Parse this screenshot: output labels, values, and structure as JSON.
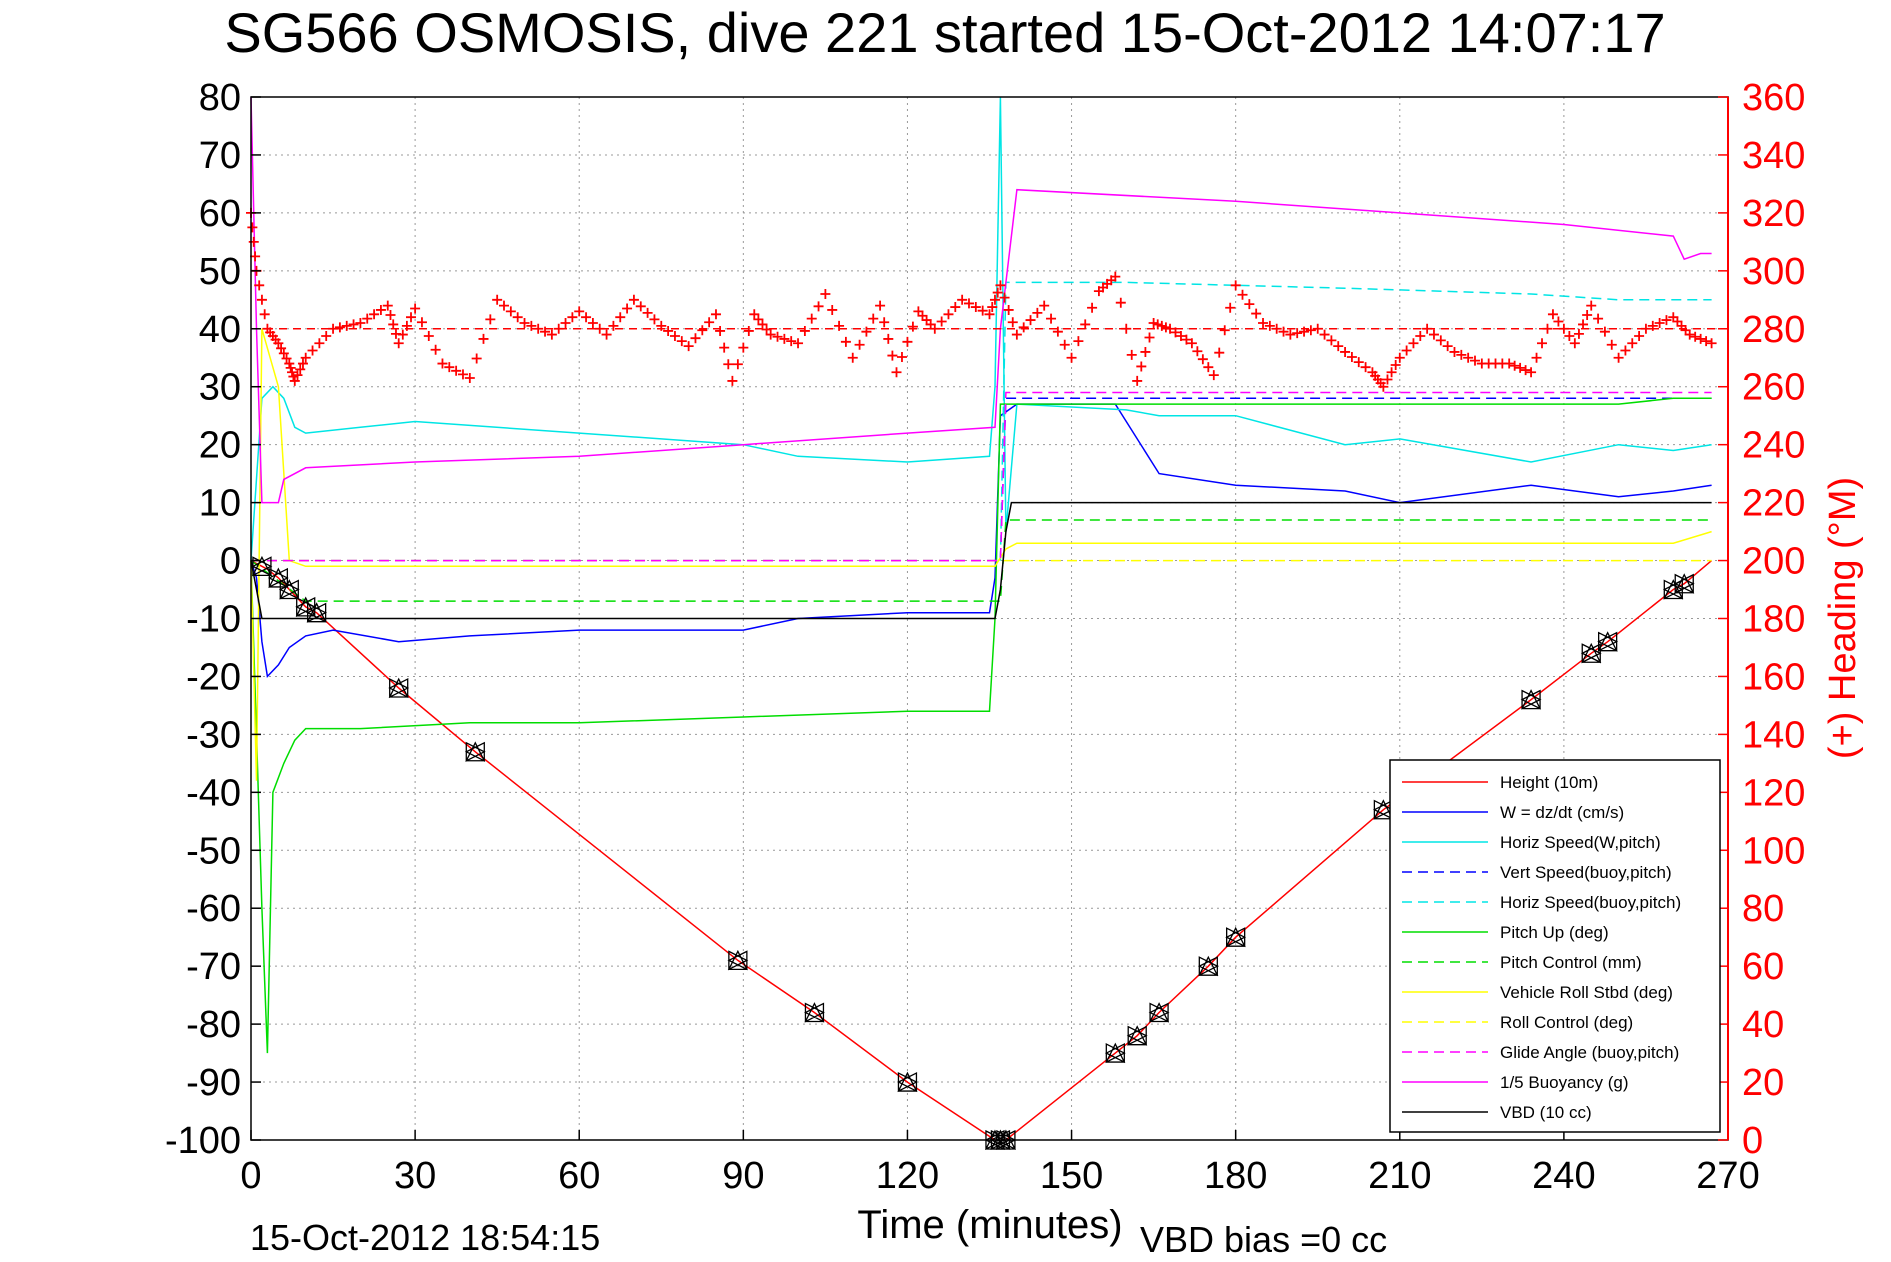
{
  "chart_data": {
    "type": "line",
    "title": "SG566 OSMOSIS, dive 221 started 15-Oct-2012 14:07:17",
    "xlabel": "Time (minutes)",
    "ylabel_right": "(+) Heading (°M)",
    "footer_date": "15-Oct-2012 18:54:15",
    "footer_bias": "VBD bias =0 cc",
    "xlim": [
      0,
      270
    ],
    "ylim": [
      -100,
      80
    ],
    "ylim_right": [
      0,
      360
    ],
    "xticks": [
      0,
      30,
      60,
      90,
      120,
      150,
      180,
      210,
      240,
      270
    ],
    "yticks": [
      -100,
      -90,
      -80,
      -70,
      -60,
      -50,
      -40,
      -30,
      -20,
      -10,
      0,
      10,
      20,
      30,
      40,
      50,
      60,
      70,
      80
    ],
    "yticks_right": [
      0,
      20,
      40,
      60,
      80,
      100,
      120,
      140,
      160,
      180,
      200,
      220,
      240,
      260,
      280,
      300,
      320,
      340,
      360
    ],
    "grid": true,
    "legend_position": "bottom-right",
    "colors": {
      "height": "#ff0000",
      "w": "#0000ff",
      "horiz_speed_w": "#00e5e5",
      "vert_speed_buoy": "#0000ff",
      "horiz_speed_buoy": "#00e5e5",
      "pitch_up": "#00dd00",
      "pitch_control": "#00dd00",
      "roll": "#ffff00",
      "roll_control": "#ffff00",
      "glide_angle": "#ff00ff",
      "buoyancy": "#ff00ff",
      "vbd": "#000000",
      "heading": "#ff0000"
    },
    "series": [
      {
        "name": "Height (10m)",
        "style": "solid",
        "color": "#ff0000",
        "x": [
          0,
          1,
          2,
          3,
          5,
          7,
          10,
          12,
          27,
          41,
          89,
          103,
          120,
          136,
          137,
          138,
          158,
          162,
          166,
          175,
          180,
          207,
          234,
          245,
          248,
          260,
          262,
          267
        ],
        "y": [
          0,
          -0.5,
          -1,
          -1.5,
          -3,
          -5,
          -8,
          -9,
          -22,
          -33,
          -69,
          -78,
          -90,
          -100,
          -100,
          -100,
          -85,
          -82,
          -78,
          -70,
          -65,
          -43,
          -24,
          -16,
          -14,
          -5,
          -4,
          0
        ]
      },
      {
        "name": "W = dz/dt (cm/s)",
        "style": "solid",
        "color": "#0000ff",
        "x": [
          0,
          1,
          2,
          3,
          5,
          7,
          10,
          15,
          27,
          40,
          60,
          90,
          100,
          120,
          135,
          136,
          137,
          140,
          155,
          158,
          166,
          180,
          200,
          210,
          234,
          250,
          260,
          267
        ],
        "y": [
          0,
          -3,
          -14,
          -20,
          -18,
          -15,
          -13,
          -12,
          -14,
          -13,
          -12,
          -12,
          -10,
          -9,
          -9,
          -3,
          25,
          27,
          27,
          27,
          15,
          13,
          12,
          10,
          13,
          11,
          12,
          13
        ]
      },
      {
        "name": "Horiz Speed(W,pitch)",
        "style": "solid",
        "color": "#00e5e5",
        "x": [
          0,
          2,
          4,
          6,
          8,
          10,
          20,
          30,
          60,
          90,
          100,
          120,
          135,
          136,
          137,
          138,
          140,
          160,
          166,
          180,
          200,
          210,
          234,
          250,
          260,
          267
        ],
        "y": [
          0,
          28,
          30,
          28,
          23,
          22,
          23,
          24,
          22,
          20,
          18,
          17,
          18,
          30,
          80,
          5,
          27,
          26,
          25,
          25,
          20,
          21,
          17,
          20,
          19,
          20
        ]
      },
      {
        "name": "Vert Speed(buoy,pitch)",
        "style": "dashed",
        "color": "#0000ff",
        "x": [
          0,
          137,
          138,
          267
        ],
        "y": [
          0,
          0,
          28,
          28
        ]
      },
      {
        "name": "Horiz Speed(buoy,pitch)",
        "style": "dashed",
        "color": "#00e5e5",
        "x": [
          137,
          138,
          160,
          200,
          234,
          250,
          267
        ],
        "y": [
          0,
          48,
          48,
          47,
          46,
          45,
          45
        ]
      },
      {
        "name": "Pitch Up (deg)",
        "style": "solid",
        "color": "#00dd00",
        "x": [
          0,
          1,
          2,
          3,
          4,
          6,
          8,
          10,
          20,
          40,
          60,
          90,
          120,
          135,
          136,
          137,
          140,
          160,
          180,
          210,
          234,
          250,
          260,
          267
        ],
        "y": [
          0,
          -30,
          -60,
          -85,
          -40,
          -35,
          -31,
          -29,
          -29,
          -28,
          -28,
          -27,
          -26,
          -26,
          -10,
          27,
          27,
          27,
          27,
          27,
          27,
          27,
          28,
          28
        ]
      },
      {
        "name": "Pitch Control (mm)",
        "style": "dashed",
        "color": "#00dd00",
        "x": [
          0,
          10,
          137,
          138,
          180,
          267
        ],
        "y": [
          0,
          -7,
          -7,
          7,
          7,
          7
        ]
      },
      {
        "name": "Vehicle Roll Stbd (deg)",
        "style": "solid",
        "color": "#ffff00",
        "x": [
          0,
          1,
          2,
          5,
          7,
          10,
          27,
          40,
          89,
          103,
          120,
          136,
          138,
          140,
          160,
          180,
          207,
          234,
          245,
          260,
          267
        ],
        "y": [
          0,
          -38,
          40,
          30,
          0,
          -1,
          -1,
          -1,
          -1,
          -1,
          -1,
          -1,
          2,
          3,
          3,
          3,
          3,
          3,
          3,
          3,
          5
        ]
      },
      {
        "name": "Roll Control (deg)",
        "style": "dashed",
        "color": "#ffff00",
        "x": [
          0,
          137,
          138,
          267
        ],
        "y": [
          0,
          0,
          0,
          0
        ]
      },
      {
        "name": "Glide Angle (buoy,pitch)",
        "style": "dashed",
        "color": "#ff00ff",
        "x": [
          0,
          137,
          138,
          267
        ],
        "y": [
          0,
          0,
          29,
          29
        ]
      },
      {
        "name": "1/5 Buoyancy (g)",
        "style": "solid",
        "color": "#ff00ff",
        "x": [
          0,
          1,
          2,
          5,
          6,
          10,
          30,
          60,
          90,
          120,
          136,
          137,
          140,
          180,
          210,
          240,
          260,
          262,
          265,
          267
        ],
        "y": [
          80,
          40,
          10,
          10,
          14,
          16,
          17,
          18,
          20,
          22,
          23,
          40,
          64,
          62,
          60,
          58,
          56,
          52,
          53,
          53
        ]
      },
      {
        "name": "VBD (10 cc)",
        "style": "solid",
        "color": "#000000",
        "x": [
          0,
          1,
          2,
          136,
          137,
          138,
          139,
          267
        ],
        "y": [
          0,
          -5,
          -10,
          -10,
          -5,
          5,
          10,
          10
        ]
      }
    ],
    "heading_series": {
      "axis": "right",
      "marker": "+",
      "color": "#ff0000",
      "x": [
        0,
        1,
        3,
        5,
        7,
        8,
        10,
        15,
        20,
        25,
        27,
        30,
        35,
        40,
        45,
        50,
        55,
        60,
        65,
        70,
        75,
        80,
        85,
        88,
        92,
        95,
        100,
        105,
        110,
        115,
        118,
        122,
        125,
        130,
        135,
        137,
        140,
        145,
        150,
        155,
        158,
        162,
        165,
        168,
        172,
        176,
        180,
        185,
        190,
        195,
        200,
        205,
        207,
        210,
        215,
        220,
        225,
        230,
        234,
        238,
        242,
        245,
        250,
        255,
        260,
        263,
        267
      ],
      "y": [
        320,
        300,
        280,
        275,
        268,
        262,
        270,
        280,
        282,
        288,
        275,
        287,
        268,
        263,
        290,
        282,
        278,
        286,
        278,
        290,
        281,
        274,
        285,
        262,
        285,
        278,
        275,
        292,
        270,
        288,
        265,
        286,
        280,
        290,
        285,
        295,
        278,
        288,
        270,
        293,
        298,
        262,
        282,
        280,
        275,
        264,
        295,
        282,
        278,
        280,
        272,
        265,
        260,
        270,
        280,
        272,
        268,
        268,
        265,
        285,
        275,
        288,
        270,
        280,
        284,
        278,
        275
      ]
    },
    "reference_lines": [
      {
        "axis": "right",
        "y": 280,
        "color": "#ff0000",
        "style": "dashed"
      }
    ],
    "markers": {
      "symbol": "triangle-cluster",
      "color": "#000000",
      "x": [
        2,
        5,
        7,
        10,
        12,
        27,
        41,
        89,
        103,
        120,
        136,
        137,
        138,
        158,
        162,
        166,
        175,
        180,
        207,
        234,
        245,
        248,
        260,
        262
      ],
      "y": [
        -1,
        -3,
        -5,
        -8,
        -9,
        -22,
        -33,
        -69,
        -78,
        -90,
        -100,
        -100,
        -100,
        -85,
        -82,
        -78,
        -70,
        -65,
        -43,
        -24,
        -16,
        -14,
        -5,
        -4
      ]
    }
  }
}
